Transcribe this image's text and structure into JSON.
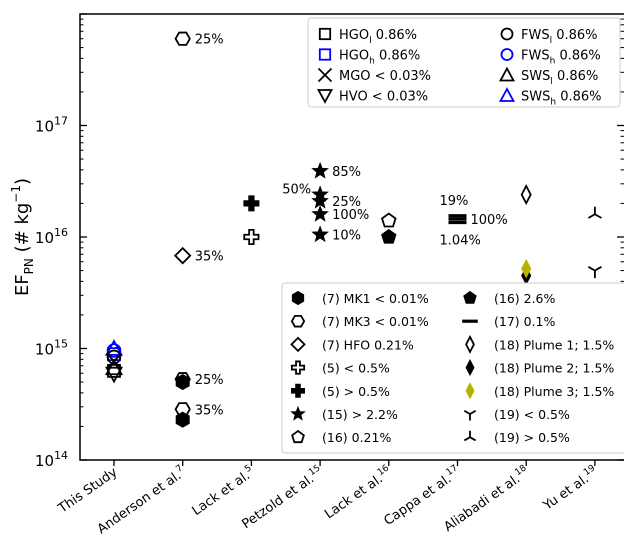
{
  "chart_data": {
    "type": "scatter",
    "y_scale": "log",
    "ylim": [
      100000000000000.0,
      1e+18
    ],
    "ylabel_main": "EF",
    "ylabel_sub": "PN",
    "ylabel_rest": " (# kg",
    "ylabel_sup": "−1",
    "ylabel_end": ")",
    "yticks": [
      {
        "value": 100000000000000.0,
        "base": "10",
        "exp": "14"
      },
      {
        "value": 1000000000000000.0,
        "base": "10",
        "exp": "15"
      },
      {
        "value": 1e+16,
        "base": "10",
        "exp": "16"
      },
      {
        "value": 1e+17,
        "base": "10",
        "exp": "17"
      }
    ],
    "categories": [
      "This Study",
      "Anderson et al.",
      "Lack et al.",
      "Petzold et al.",
      "Lack et al.",
      "Cappa et al.",
      "Aliabadi et al.",
      "Yu et al."
    ],
    "category_refs": [
      "",
      "7",
      "5",
      "15",
      "16",
      "17",
      "18",
      "19"
    ],
    "points": [
      {
        "x": 0,
        "y": 1000000000000000.0,
        "marker": "triangle-up",
        "color": "#0000ff"
      },
      {
        "x": 0,
        "y": 960000000000000.0,
        "marker": "circle",
        "color": "#0000ff"
      },
      {
        "x": 0,
        "y": 890000000000000.0,
        "marker": "square",
        "color": "#0000ff"
      },
      {
        "x": 0,
        "y": 840000000000000.0,
        "marker": "circle",
        "color": "#000000"
      },
      {
        "x": 0,
        "y": 770000000000000.0,
        "marker": "x",
        "color": "#000000"
      },
      {
        "x": 0,
        "y": 670000000000000.0,
        "marker": "triangle-up",
        "color": "#000000"
      },
      {
        "x": 0,
        "y": 630000000000000.0,
        "marker": "square",
        "color": "#000000"
      },
      {
        "x": 0,
        "y": 590000000000000.0,
        "marker": "triangle-down",
        "color": "#000000"
      },
      {
        "x": 1,
        "y": 6e+17,
        "marker": "hexagon-open",
        "color": "#000000",
        "label": "25%",
        "label_pos": "right"
      },
      {
        "x": 1,
        "y": 6800000000000000.0,
        "marker": "diamond-open",
        "color": "#000000",
        "label": "35%",
        "label_pos": "right"
      },
      {
        "x": 1,
        "y": 530000000000000.0,
        "marker": "hexagon-open",
        "color": "#000000",
        "label": "25%",
        "label_pos": "right"
      },
      {
        "x": 1,
        "y": 500000000000000.0,
        "marker": "hexagon",
        "color": "#000000"
      },
      {
        "x": 1,
        "y": 285000000000000.0,
        "marker": "hexagon-open",
        "color": "#000000",
        "label": "35%",
        "label_pos": "right"
      },
      {
        "x": 1,
        "y": 230000000000000.0,
        "marker": "hexagon",
        "color": "#000000"
      },
      {
        "x": 2,
        "y": 2e+16,
        "marker": "plus-filled",
        "color": "#000000"
      },
      {
        "x": 2,
        "y": 1e+16,
        "marker": "plus-open",
        "color": "#000000"
      },
      {
        "x": 3,
        "y": 3.9e+16,
        "marker": "star",
        "color": "#000000",
        "label": "85%",
        "label_pos": "right"
      },
      {
        "x": 3,
        "y": 2.4e+16,
        "marker": "star",
        "color": "#000000",
        "label": "50%",
        "label_pos": "left"
      },
      {
        "x": 3,
        "y": 2.1e+16,
        "marker": "star",
        "color": "#000000",
        "label": "25%",
        "label_pos": "right"
      },
      {
        "x": 3,
        "y": 1.6e+16,
        "marker": "star",
        "color": "#000000",
        "label": "100%",
        "label_pos": "right"
      },
      {
        "x": 3,
        "y": 1.05e+16,
        "marker": "star",
        "color": "#000000",
        "label": "10%",
        "label_pos": "right"
      },
      {
        "x": 4,
        "y": 1.4e+16,
        "marker": "pentagon-open",
        "color": "#000000"
      },
      {
        "x": 4,
        "y": 1e+16,
        "marker": "pentagon",
        "color": "#000000"
      },
      {
        "x": 5,
        "y": 1.55e+16,
        "marker": "hline",
        "color": "#000000",
        "label": "19%",
        "label_pos": "above"
      },
      {
        "x": 5,
        "y": 1.45e+16,
        "marker": "hline",
        "color": "#000000",
        "label": "100%",
        "label_pos": "right"
      },
      {
        "x": 5,
        "y": 1.35e+16,
        "marker": "hline",
        "color": "#000000",
        "label": "1.04%",
        "label_pos": "below"
      },
      {
        "x": 6,
        "y": 2.4e+16,
        "marker": "thin-diamond-open",
        "color": "#000000"
      },
      {
        "x": 6,
        "y": 4500000000000000.0,
        "marker": "thin-diamond",
        "color": "#000000"
      },
      {
        "x": 6,
        "y": 5200000000000000.0,
        "marker": "thin-diamond",
        "color": "#b5b500"
      },
      {
        "x": 7,
        "y": 5000000000000000.0,
        "marker": "tri-down",
        "color": "#000000"
      },
      {
        "x": 7,
        "y": 1.6e+16,
        "marker": "tri-up",
        "color": "#000000"
      }
    ],
    "legend_top": {
      "placement": "top-right",
      "entries": [
        {
          "marker": "square",
          "color": "#000000",
          "name": "HGO",
          "sub": "l",
          "value": " 0.86%"
        },
        {
          "marker": "circle",
          "color": "#000000",
          "name": "FWS",
          "sub": "l",
          "value": " 0.86%"
        },
        {
          "marker": "square",
          "color": "#0000ff",
          "name": "HGO",
          "sub": "h",
          "value": " 0.86%"
        },
        {
          "marker": "circle",
          "color": "#0000ff",
          "name": "FWS",
          "sub": "h",
          "value": " 0.86%"
        },
        {
          "marker": "x",
          "color": "#000000",
          "name": "MGO < 0.03%",
          "sub": "",
          "value": ""
        },
        {
          "marker": "triangle-up",
          "color": "#000000",
          "name": "SWS",
          "sub": "l",
          "value": " 0.86%"
        },
        {
          "marker": "triangle-down",
          "color": "#000000",
          "name": "HVO < 0.03%",
          "sub": "",
          "value": ""
        },
        {
          "marker": "triangle-up",
          "color": "#0000ff",
          "name": "SWS",
          "sub": "h",
          "value": " 0.86%"
        }
      ]
    },
    "legend_bottom": {
      "placement": "bottom-right",
      "entries": [
        {
          "marker": "hexagon",
          "color": "#000000",
          "text": "(7) MK1 < 0.01%"
        },
        {
          "marker": "pentagon",
          "color": "#000000",
          "text": "(16) 2.6%"
        },
        {
          "marker": "hexagon-open",
          "color": "#000000",
          "text": "(7) MK3 < 0.01%"
        },
        {
          "marker": "hline",
          "color": "#000000",
          "text": "(17) 0.1%"
        },
        {
          "marker": "diamond-open",
          "color": "#000000",
          "text": "(7) HFO 0.21%"
        },
        {
          "marker": "thin-diamond-open",
          "color": "#000000",
          "text": "(18) Plume 1; 1.5%"
        },
        {
          "marker": "plus-open",
          "color": "#000000",
          "text": "(5)  < 0.5%"
        },
        {
          "marker": "thin-diamond",
          "color": "#000000",
          "text": "(18) Plume 2; 1.5%"
        },
        {
          "marker": "plus-filled",
          "color": "#000000",
          "text": "(5)  > 0.5%"
        },
        {
          "marker": "thin-diamond",
          "color": "#b5b500",
          "text": "(18) Plume 3; 1.5%"
        },
        {
          "marker": "star",
          "color": "#000000",
          "text": "(15)  > 2.2%"
        },
        {
          "marker": "tri-down",
          "color": "#000000",
          "text": "(19)  < 0.5%"
        },
        {
          "marker": "pentagon-open",
          "color": "#000000",
          "text": "(16) 0.21%"
        },
        {
          "marker": "tri-up",
          "color": "#000000",
          "text": "(19)  > 0.5%"
        }
      ]
    }
  }
}
